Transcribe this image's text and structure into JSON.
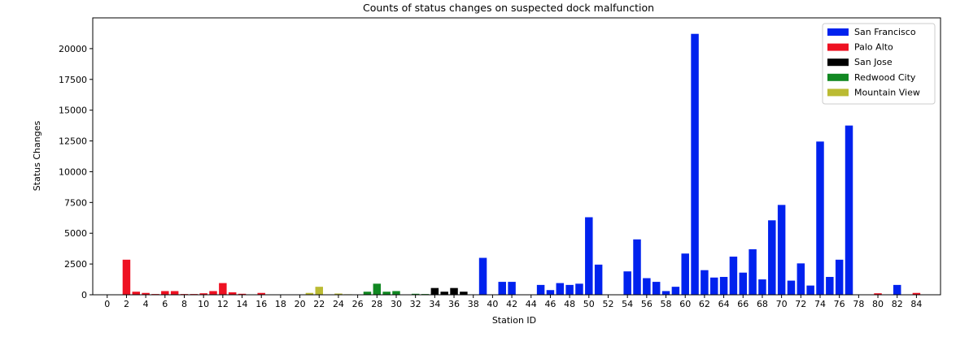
{
  "chart_data": {
    "type": "bar",
    "title": "Counts of status changes on suspected dock malfunction",
    "xlabel": "Station ID",
    "ylabel": "Status Changes",
    "xlim": [
      -1.5,
      86.5
    ],
    "ylim": [
      0,
      22500
    ],
    "x_ticks": [
      0,
      2,
      4,
      6,
      8,
      10,
      12,
      14,
      16,
      18,
      20,
      22,
      24,
      26,
      28,
      30,
      32,
      34,
      36,
      38,
      40,
      42,
      44,
      46,
      48,
      50,
      52,
      54,
      56,
      58,
      60,
      62,
      64,
      66,
      68,
      70,
      72,
      74,
      76,
      78,
      80,
      82,
      84
    ],
    "y_ticks": [
      0,
      2500,
      5000,
      7500,
      10000,
      12500,
      15000,
      17500,
      20000
    ],
    "grid": false,
    "legend_position": "top-right",
    "series": [
      {
        "name": "San Francisco",
        "color": "#0022ee",
        "points": [
          [
            39,
            3000
          ],
          [
            41,
            1050
          ],
          [
            42,
            1050
          ],
          [
            45,
            800
          ],
          [
            46,
            380
          ],
          [
            47,
            950
          ],
          [
            48,
            800
          ],
          [
            49,
            900
          ],
          [
            50,
            6300
          ],
          [
            51,
            2450
          ],
          [
            54,
            1900
          ],
          [
            55,
            4500
          ],
          [
            56,
            1350
          ],
          [
            57,
            1050
          ],
          [
            58,
            300
          ],
          [
            59,
            650
          ],
          [
            60,
            3350
          ],
          [
            61,
            21200
          ],
          [
            62,
            2000
          ],
          [
            63,
            1400
          ],
          [
            64,
            1450
          ],
          [
            65,
            3100
          ],
          [
            66,
            1800
          ],
          [
            67,
            3700
          ],
          [
            68,
            1250
          ],
          [
            69,
            6050
          ],
          [
            70,
            7300
          ],
          [
            71,
            1150
          ],
          [
            72,
            2550
          ],
          [
            73,
            750
          ],
          [
            74,
            12450
          ],
          [
            75,
            1450
          ],
          [
            76,
            2850
          ],
          [
            77,
            13750
          ],
          [
            82,
            800
          ]
        ]
      },
      {
        "name": "Palo Alto",
        "color": "#ee1122",
        "points": [
          [
            2,
            2850
          ],
          [
            3,
            250
          ],
          [
            4,
            150
          ],
          [
            5,
            60
          ],
          [
            6,
            300
          ],
          [
            7,
            300
          ],
          [
            8,
            60
          ],
          [
            9,
            60
          ],
          [
            10,
            120
          ],
          [
            11,
            300
          ],
          [
            12,
            950
          ],
          [
            13,
            200
          ],
          [
            14,
            80
          ],
          [
            16,
            150
          ],
          [
            80,
            120
          ],
          [
            84,
            150
          ]
        ]
      },
      {
        "name": "San Jose",
        "color": "#000000",
        "points": [
          [
            34,
            550
          ],
          [
            35,
            250
          ],
          [
            36,
            550
          ],
          [
            37,
            250
          ]
        ]
      },
      {
        "name": "Redwood City",
        "color": "#118822",
        "points": [
          [
            27,
            250
          ],
          [
            28,
            900
          ],
          [
            29,
            250
          ],
          [
            30,
            300
          ],
          [
            32,
            80
          ],
          [
            33,
            60
          ]
        ]
      },
      {
        "name": "Mountain View",
        "color": "#bbbb33",
        "points": [
          [
            21,
            150
          ],
          [
            22,
            650
          ],
          [
            24,
            100
          ],
          [
            25,
            40
          ]
        ]
      }
    ]
  }
}
